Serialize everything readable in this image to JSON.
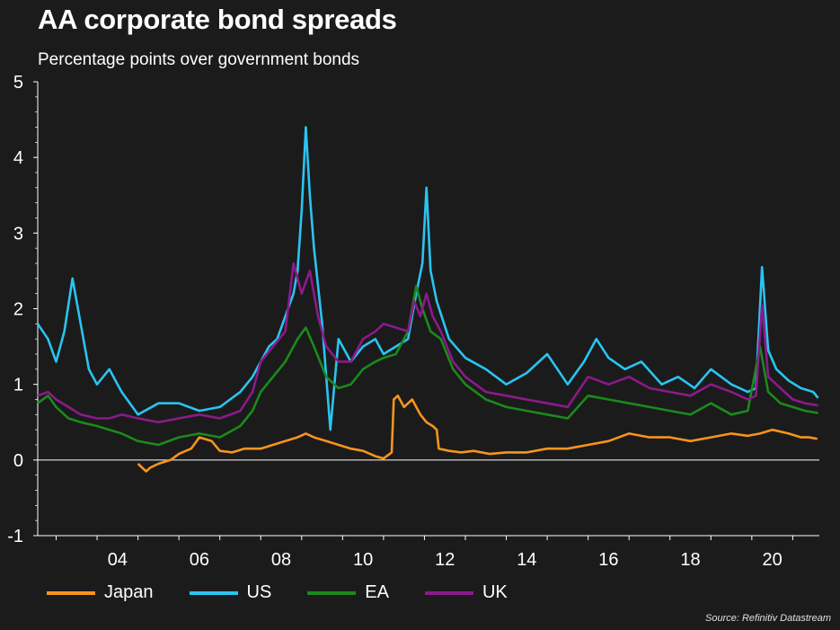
{
  "chart_data": {
    "type": "line",
    "title": "AA corporate bond spreads",
    "subtitle": "Percentage points over government bonds",
    "source": "Source: Refinitiv Datastream",
    "xlabel": "",
    "ylabel": "",
    "ylim": [
      -1,
      5
    ],
    "xlim": [
      2002.55,
      2021.65
    ],
    "yticks": [
      "5",
      "4",
      "3",
      "2",
      "1",
      "0",
      "-1"
    ],
    "xticks": [
      "04",
      "06",
      "08",
      "10",
      "12",
      "14",
      "16",
      "18",
      "20"
    ],
    "grid": false,
    "legend_position": "bottom",
    "series": [
      {
        "name": "Japan",
        "color": "#f7941d",
        "x": [
          2005.0,
          2005.2,
          2005.3,
          2005.5,
          2005.8,
          2006.0,
          2006.3,
          2006.5,
          2006.8,
          2007.0,
          2007.3,
          2007.6,
          2008.0,
          2008.3,
          2008.6,
          2008.9,
          2009.1,
          2009.3,
          2009.6,
          2009.9,
          2010.2,
          2010.5,
          2010.8,
          2011.0,
          2011.2,
          2011.25,
          2011.35,
          2011.5,
          2011.7,
          2011.9,
          2012.05,
          2012.2,
          2012.3,
          2012.35,
          2012.6,
          2012.9,
          2013.2,
          2013.6,
          2014.0,
          2014.5,
          2015.0,
          2015.5,
          2016.0,
          2016.5,
          2017.0,
          2017.5,
          2018.0,
          2018.5,
          2019.0,
          2019.5,
          2019.9,
          2020.2,
          2020.5,
          2020.9,
          2021.2,
          2021.4,
          2021.6
        ],
        "values": [
          -0.05,
          -0.15,
          -0.1,
          -0.05,
          0.0,
          0.08,
          0.15,
          0.3,
          0.25,
          0.12,
          0.1,
          0.15,
          0.15,
          0.2,
          0.25,
          0.3,
          0.35,
          0.3,
          0.25,
          0.2,
          0.15,
          0.12,
          0.05,
          0.02,
          0.1,
          0.8,
          0.85,
          0.7,
          0.8,
          0.6,
          0.5,
          0.45,
          0.4,
          0.15,
          0.12,
          0.1,
          0.12,
          0.08,
          0.1,
          0.1,
          0.15,
          0.15,
          0.2,
          0.25,
          0.35,
          0.3,
          0.3,
          0.25,
          0.3,
          0.35,
          0.32,
          0.35,
          0.4,
          0.35,
          0.3,
          0.3,
          0.28
        ]
      },
      {
        "name": "US",
        "color": "#29c4f1",
        "x": [
          2002.55,
          2002.8,
          2003.0,
          2003.2,
          2003.4,
          2003.6,
          2003.8,
          2004.0,
          2004.3,
          2004.6,
          2005.0,
          2005.5,
          2006.0,
          2006.5,
          2007.0,
          2007.5,
          2007.8,
          2008.0,
          2008.2,
          2008.4,
          2008.6,
          2008.8,
          2008.9,
          2009.0,
          2009.1,
          2009.2,
          2009.3,
          2009.5,
          2009.7,
          2009.9,
          2010.2,
          2010.5,
          2010.8,
          2011.0,
          2011.3,
          2011.6,
          2011.8,
          2011.95,
          2012.05,
          2012.15,
          2012.3,
          2012.6,
          2013.0,
          2013.5,
          2014.0,
          2014.5,
          2015.0,
          2015.5,
          2015.9,
          2016.2,
          2016.5,
          2016.9,
          2017.3,
          2017.8,
          2018.2,
          2018.6,
          2019.0,
          2019.5,
          2019.9,
          2020.1,
          2020.25,
          2020.4,
          2020.6,
          2020.9,
          2021.2,
          2021.5,
          2021.62
        ],
        "values": [
          1.8,
          1.6,
          1.3,
          1.7,
          2.4,
          1.8,
          1.2,
          1.0,
          1.2,
          0.9,
          0.6,
          0.75,
          0.75,
          0.65,
          0.7,
          0.9,
          1.1,
          1.3,
          1.5,
          1.6,
          1.9,
          2.2,
          2.5,
          3.3,
          4.4,
          3.5,
          2.8,
          1.8,
          0.4,
          1.6,
          1.3,
          1.5,
          1.6,
          1.4,
          1.5,
          1.6,
          2.2,
          2.6,
          3.6,
          2.5,
          2.1,
          1.6,
          1.35,
          1.2,
          1.0,
          1.15,
          1.4,
          1.0,
          1.3,
          1.6,
          1.35,
          1.2,
          1.3,
          1.0,
          1.1,
          0.95,
          1.2,
          1.0,
          0.9,
          0.95,
          2.55,
          1.45,
          1.2,
          1.05,
          0.95,
          0.9,
          0.82
        ]
      },
      {
        "name": "EA",
        "color": "#1b8a1b",
        "x": [
          2002.55,
          2002.8,
          2003.0,
          2003.3,
          2003.6,
          2004.0,
          2004.3,
          2004.6,
          2005.0,
          2005.5,
          2006.0,
          2006.5,
          2007.0,
          2007.5,
          2007.8,
          2008.0,
          2008.3,
          2008.6,
          2008.9,
          2009.1,
          2009.3,
          2009.6,
          2009.9,
          2010.2,
          2010.5,
          2010.8,
          2011.0,
          2011.3,
          2011.6,
          2011.8,
          2011.95,
          2012.15,
          2012.4,
          2012.7,
          2013.0,
          2013.5,
          2014.0,
          2014.5,
          2015.0,
          2015.5,
          2016.0,
          2016.5,
          2017.0,
          2017.5,
          2018.0,
          2018.5,
          2019.0,
          2019.5,
          2019.9,
          2020.2,
          2020.4,
          2020.7,
          2021.0,
          2021.3,
          2021.62
        ],
        "values": [
          0.75,
          0.85,
          0.7,
          0.55,
          0.5,
          0.45,
          0.4,
          0.35,
          0.25,
          0.2,
          0.3,
          0.35,
          0.3,
          0.45,
          0.65,
          0.9,
          1.1,
          1.3,
          1.6,
          1.75,
          1.5,
          1.1,
          0.95,
          1.0,
          1.2,
          1.3,
          1.35,
          1.4,
          1.7,
          2.3,
          2.0,
          1.7,
          1.6,
          1.2,
          1.0,
          0.8,
          0.7,
          0.65,
          0.6,
          0.55,
          0.85,
          0.8,
          0.75,
          0.7,
          0.65,
          0.6,
          0.75,
          0.6,
          0.65,
          1.5,
          0.9,
          0.75,
          0.7,
          0.65,
          0.62
        ]
      },
      {
        "name": "UK",
        "color": "#8b1a8b",
        "x": [
          2002.55,
          2002.8,
          2003.0,
          2003.3,
          2003.6,
          2004.0,
          2004.3,
          2004.6,
          2005.0,
          2005.5,
          2006.0,
          2006.5,
          2007.0,
          2007.5,
          2007.8,
          2008.0,
          2008.3,
          2008.6,
          2008.8,
          2009.0,
          2009.2,
          2009.4,
          2009.6,
          2009.9,
          2010.2,
          2010.5,
          2010.8,
          2011.0,
          2011.3,
          2011.6,
          2011.75,
          2011.9,
          2012.05,
          2012.2,
          2012.4,
          2012.7,
          2013.0,
          2013.5,
          2014.0,
          2014.5,
          2015.0,
          2015.5,
          2016.0,
          2016.5,
          2017.0,
          2017.5,
          2018.0,
          2018.5,
          2019.0,
          2019.5,
          2019.9,
          2020.1,
          2020.25,
          2020.4,
          2020.7,
          2021.0,
          2021.3,
          2021.62
        ],
        "values": [
          0.85,
          0.9,
          0.8,
          0.7,
          0.6,
          0.55,
          0.55,
          0.6,
          0.55,
          0.5,
          0.55,
          0.6,
          0.55,
          0.65,
          0.9,
          1.3,
          1.5,
          1.7,
          2.6,
          2.2,
          2.5,
          1.9,
          1.5,
          1.3,
          1.3,
          1.6,
          1.7,
          1.8,
          1.75,
          1.7,
          2.1,
          1.9,
          2.2,
          1.9,
          1.7,
          1.3,
          1.1,
          0.9,
          0.85,
          0.8,
          0.75,
          0.7,
          1.1,
          1.0,
          1.1,
          0.95,
          0.9,
          0.85,
          1.0,
          0.9,
          0.8,
          0.85,
          2.05,
          1.1,
          0.95,
          0.8,
          0.75,
          0.72
        ]
      }
    ]
  }
}
